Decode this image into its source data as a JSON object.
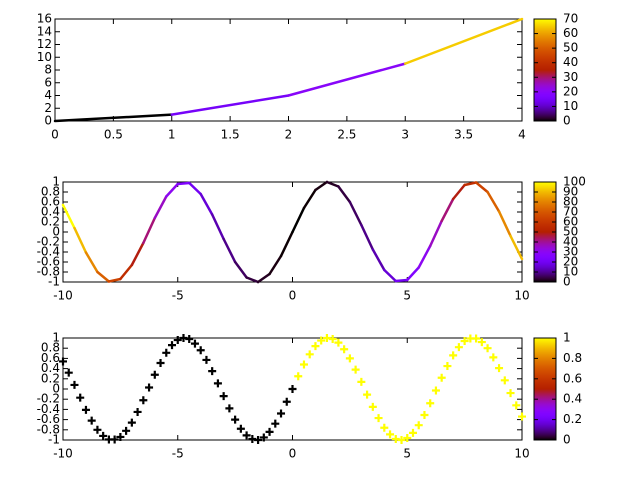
{
  "chart_data": [
    {
      "type": "line",
      "x": [
        0,
        1,
        2,
        3,
        4
      ],
      "values": [
        0,
        1,
        4,
        9,
        16
      ],
      "color_values": [
        0,
        15,
        20,
        65,
        70
      ],
      "xlim": [
        0,
        4
      ],
      "xticks": [
        0,
        0.5,
        1,
        1.5,
        2,
        2.5,
        3,
        3.5,
        4
      ],
      "ylim": [
        0,
        16
      ],
      "yticks": [
        0,
        2,
        4,
        6,
        8,
        10,
        12,
        14,
        16
      ],
      "clim": [
        0,
        70
      ],
      "cticks": [
        0,
        10,
        20,
        30,
        40,
        50,
        60,
        70
      ]
    },
    {
      "type": "line",
      "x": [
        -10,
        -9.5,
        -9,
        -8.5,
        -8,
        -7.5,
        -7,
        -6.5,
        -6,
        -5.5,
        -5,
        -4.5,
        -4,
        -3.5,
        -3,
        -2.5,
        -2,
        -1.5,
        -1,
        -0.5,
        0,
        0.5,
        1,
        1.5,
        2,
        2.5,
        3,
        3.5,
        4,
        4.5,
        5,
        5.5,
        6,
        6.5,
        7,
        7.5,
        8,
        8.5,
        9,
        9.5,
        10
      ],
      "values": [
        0.54,
        0.08,
        -0.41,
        -0.8,
        -0.99,
        -0.94,
        -0.66,
        -0.22,
        0.28,
        0.71,
        0.96,
        0.98,
        0.76,
        0.35,
        -0.14,
        -0.6,
        -0.91,
        -1,
        -0.84,
        -0.48,
        0,
        0.48,
        0.84,
        1,
        0.91,
        0.6,
        0.14,
        -0.35,
        -0.76,
        -0.98,
        -0.96,
        -0.71,
        -0.28,
        0.22,
        0.66,
        0.94,
        0.99,
        0.8,
        0.41,
        -0.08,
        -0.54
      ],
      "color_values": [
        100,
        90.25,
        81,
        72.25,
        64,
        56.25,
        49,
        42.25,
        36,
        30.25,
        25,
        20.25,
        16,
        12.25,
        9,
        6.25,
        4,
        2.25,
        1,
        0.25,
        0,
        0.25,
        1,
        2.25,
        4,
        6.25,
        9,
        12.25,
        16,
        20.25,
        25,
        30.25,
        36,
        42.25,
        49,
        56.25,
        64,
        72.25,
        81,
        90.25,
        100
      ],
      "xlim": [
        -10,
        10
      ],
      "xticks": [
        -10,
        -5,
        0,
        5,
        10
      ],
      "ylim": [
        -1,
        1
      ],
      "yticks": [
        -1,
        -0.8,
        -0.6,
        -0.4,
        -0.2,
        0,
        0.2,
        0.4,
        0.6,
        0.8,
        1
      ],
      "clim": [
        0,
        100
      ],
      "cticks": [
        0,
        10,
        20,
        30,
        40,
        50,
        60,
        70,
        80,
        90,
        100
      ]
    },
    {
      "type": "scatter",
      "x": [
        -10,
        -9.75,
        -9.5,
        -9.25,
        -9,
        -8.75,
        -8.5,
        -8.25,
        -8,
        -7.75,
        -7.5,
        -7.25,
        -7,
        -6.75,
        -6.5,
        -6.25,
        -6,
        -5.75,
        -5.5,
        -5.25,
        -5,
        -4.75,
        -4.5,
        -4.25,
        -4,
        -3.75,
        -3.5,
        -3.25,
        -3,
        -2.75,
        -2.5,
        -2.25,
        -2,
        -1.75,
        -1.5,
        -1.25,
        -1,
        -0.75,
        -0.5,
        -0.25,
        0,
        0.25,
        0.5,
        0.75,
        1,
        1.25,
        1.5,
        1.75,
        2,
        2.25,
        2.5,
        2.75,
        3,
        3.25,
        3.5,
        3.75,
        4,
        4.25,
        4.5,
        4.75,
        5,
        5.25,
        5.5,
        5.75,
        6,
        6.25,
        6.5,
        6.75,
        7,
        7.25,
        7.5,
        7.75,
        8,
        8.25,
        8.5,
        8.75,
        9,
        9.25,
        9.5,
        9.75,
        10
      ],
      "values": [
        0.54,
        0.32,
        0.08,
        -0.17,
        -0.41,
        -0.62,
        -0.8,
        -0.92,
        -0.99,
        -0.99,
        -0.94,
        -0.82,
        -0.66,
        -0.45,
        -0.22,
        0.03,
        0.28,
        0.51,
        0.71,
        0.86,
        0.96,
        1,
        0.98,
        0.89,
        0.76,
        0.57,
        0.35,
        0.11,
        -0.14,
        -0.38,
        -0.6,
        -0.78,
        -0.91,
        -0.98,
        -1,
        -0.95,
        -0.84,
        -0.68,
        -0.48,
        -0.25,
        0,
        0.25,
        0.48,
        0.68,
        0.84,
        0.95,
        1,
        0.98,
        0.91,
        0.78,
        0.6,
        0.38,
        0.14,
        -0.11,
        -0.35,
        -0.57,
        -0.76,
        -0.89,
        -0.98,
        -1,
        -0.96,
        -0.86,
        -0.71,
        -0.51,
        -0.28,
        -0.03,
        0.22,
        0.45,
        0.66,
        0.82,
        0.94,
        0.99,
        0.99,
        0.92,
        0.8,
        0.62,
        0.41,
        0.17,
        -0.08,
        -0.32,
        -0.54
      ],
      "color_values": [
        0,
        0,
        0,
        0,
        0,
        0,
        0,
        0,
        0,
        0,
        0,
        0,
        0,
        0,
        0,
        0,
        0,
        0,
        0,
        0,
        0,
        0,
        0,
        0,
        0,
        0,
        0,
        0,
        0,
        0,
        0,
        0,
        0,
        0,
        0,
        0,
        0,
        0,
        0,
        0,
        0,
        1,
        1,
        1,
        1,
        1,
        1,
        1,
        1,
        1,
        1,
        1,
        1,
        1,
        1,
        1,
        1,
        1,
        1,
        1,
        1,
        1,
        1,
        1,
        1,
        1,
        1,
        1,
        1,
        1,
        1,
        1,
        1,
        1,
        1,
        1,
        1,
        1,
        1,
        1,
        1
      ],
      "xlim": [
        -10,
        10
      ],
      "xticks": [
        -10,
        -5,
        0,
        5,
        10
      ],
      "ylim": [
        -1,
        1
      ],
      "yticks": [
        -1,
        -0.8,
        -0.6,
        -0.4,
        -0.2,
        0,
        0.2,
        0.4,
        0.6,
        0.8,
        1
      ],
      "clim": [
        0,
        1
      ],
      "cticks": [
        0,
        0.2,
        0.4,
        0.6,
        0.8,
        1
      ]
    }
  ]
}
